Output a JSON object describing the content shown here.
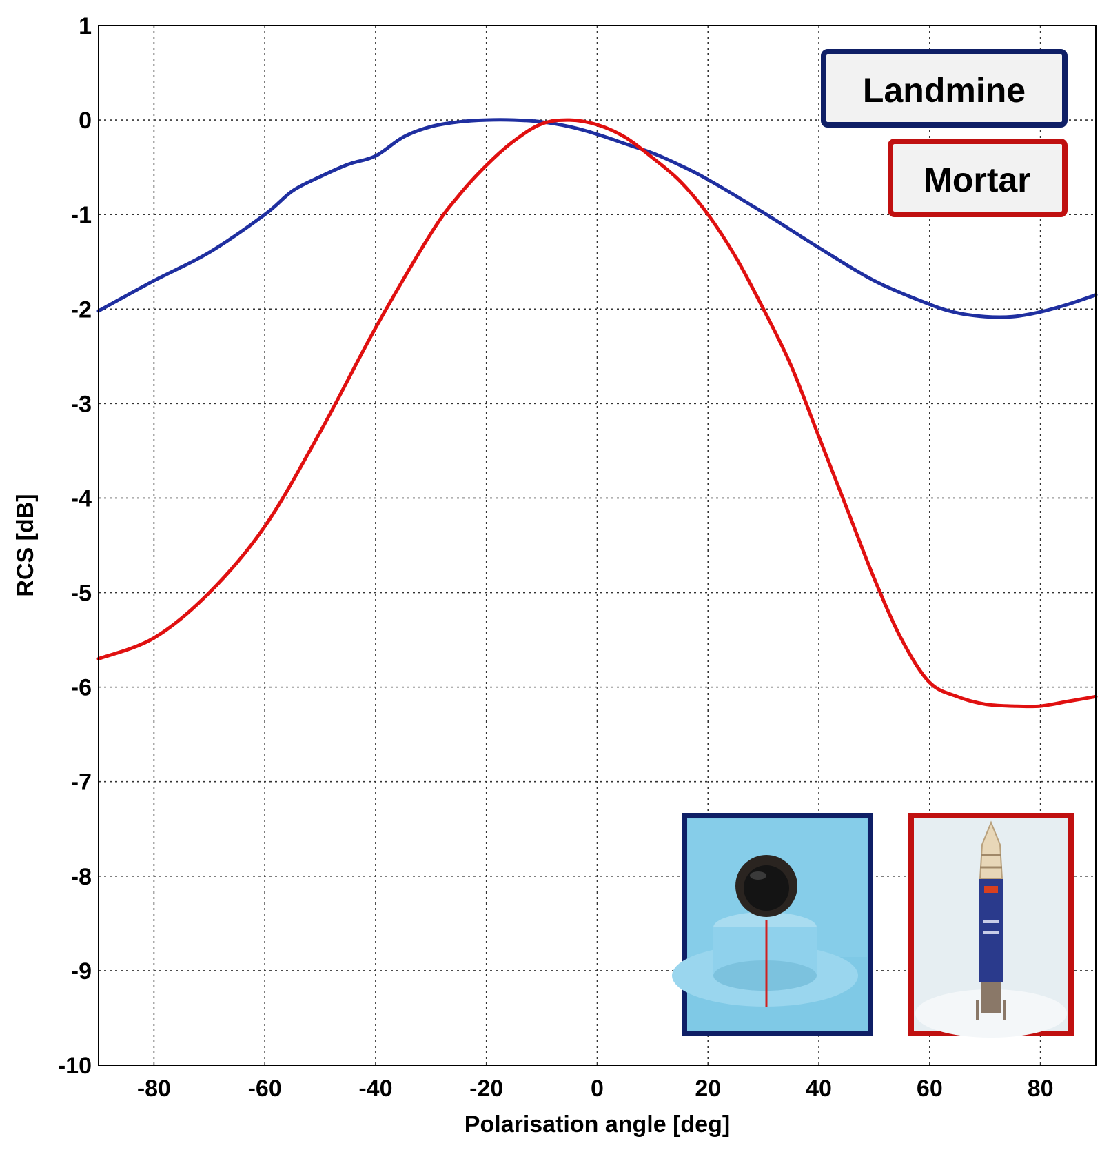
{
  "chart_data": {
    "type": "line",
    "title": "",
    "xlabel": "Polarisation angle [deg]",
    "ylabel": "RCS [dB]",
    "xlim": [
      -90,
      90
    ],
    "ylim": [
      -10,
      1
    ],
    "xticks": [
      -80,
      -60,
      -40,
      -20,
      0,
      20,
      40,
      60,
      80
    ],
    "yticks": [
      1,
      0,
      -1,
      -2,
      -3,
      -4,
      -5,
      -6,
      -7,
      -8,
      -9,
      -10
    ],
    "grid": true,
    "legend_position": "top-right",
    "series": [
      {
        "name": "Landmine",
        "color": "#1f2fa0",
        "x": [
          -90,
          -80,
          -70,
          -60,
          -55,
          -50,
          -45,
          -40,
          -35,
          -30,
          -25,
          -20,
          -15,
          -10,
          -5,
          0,
          5,
          10,
          15,
          20,
          30,
          40,
          50,
          60,
          65,
          70,
          75,
          80,
          85,
          90
        ],
        "y": [
          -2.02,
          -1.7,
          -1.4,
          -1.0,
          -0.75,
          -0.6,
          -0.47,
          -0.38,
          -0.18,
          -0.07,
          -0.02,
          0.0,
          0.0,
          -0.02,
          -0.07,
          -0.15,
          -0.25,
          -0.35,
          -0.48,
          -0.63,
          -0.98,
          -1.35,
          -1.7,
          -1.95,
          -2.04,
          -2.08,
          -2.08,
          -2.03,
          -1.95,
          -1.85
        ]
      },
      {
        "name": "Mortar",
        "color": "#e01010",
        "x": [
          -90,
          -80,
          -70,
          -60,
          -50,
          -40,
          -30,
          -25,
          -20,
          -15,
          -10,
          -5,
          0,
          5,
          10,
          15,
          20,
          25,
          30,
          35,
          40,
          45,
          50,
          55,
          60,
          65,
          70,
          75,
          80,
          85,
          90
        ],
        "y": [
          -5.7,
          -5.48,
          -5.0,
          -4.3,
          -3.3,
          -2.2,
          -1.2,
          -0.8,
          -0.48,
          -0.22,
          -0.04,
          0.0,
          -0.05,
          -0.18,
          -0.4,
          -0.65,
          -1.0,
          -1.45,
          -2.0,
          -2.6,
          -3.35,
          -4.1,
          -4.85,
          -5.5,
          -5.95,
          -6.1,
          -6.18,
          -6.2,
          -6.2,
          -6.15,
          -6.1
        ]
      }
    ],
    "legend": [
      {
        "label": "Landmine",
        "color": "#0f1f66"
      },
      {
        "label": "Mortar",
        "color": "#c01010"
      }
    ],
    "insets": [
      {
        "name": "landmine-photo",
        "border_color": "#0f1f66"
      },
      {
        "name": "mortar-photo",
        "border_color": "#c01010"
      }
    ]
  }
}
